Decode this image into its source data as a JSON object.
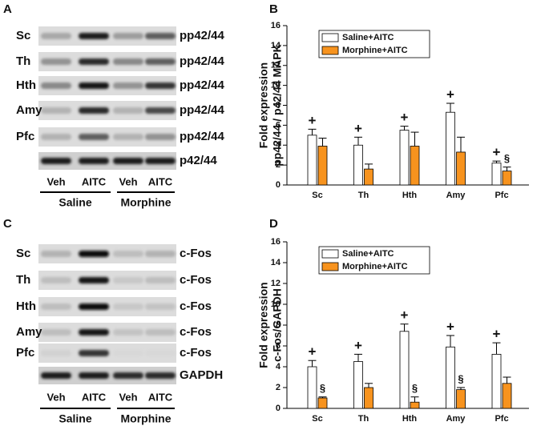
{
  "blots": [
    {
      "panel": "A",
      "rows": [
        "Sc",
        "Th",
        "Hth",
        "Amy",
        "Pfc"
      ],
      "row_target": [
        "pp42/44",
        "pp42/44",
        "pp42/44",
        "pp42/44",
        "pp42/44"
      ],
      "loading_target": "p42/44",
      "lanes": [
        "Veh",
        "AITC",
        "Veh",
        "AITC"
      ],
      "groups": [
        "Saline",
        "Morphine"
      ]
    },
    {
      "panel": "C",
      "rows": [
        "Sc",
        "Th",
        "Hth",
        "Amy",
        "Pfc"
      ],
      "row_target": [
        "c-Fos",
        "c-Fos",
        "c-Fos",
        "c-Fos",
        "c-Fos"
      ],
      "loading_target": "GAPDH",
      "lanes": [
        "Veh",
        "AITC",
        "Veh",
        "AITC"
      ],
      "groups": [
        "Saline",
        "Morphine"
      ]
    }
  ],
  "chart_data": [
    {
      "type": "bar",
      "panel": "B",
      "ylabel": [
        "Fold expression",
        "pp42/44 / p42/44 MAPK"
      ],
      "categories": [
        "Sc",
        "Th",
        "Hth",
        "Amy",
        "Pfc"
      ],
      "series": [
        {
          "name": "Saline+AITC",
          "color": "#ffffff",
          "values": [
            5.0,
            4.0,
            5.5,
            7.3,
            2.2
          ],
          "errors": [
            0.6,
            0.8,
            0.4,
            0.9,
            0.2
          ],
          "annotations": [
            "+",
            "+",
            "+",
            "+",
            "+"
          ]
        },
        {
          "name": "Morphine+AITC",
          "color": "#f7931e",
          "values": [
            3.9,
            1.6,
            3.9,
            3.3,
            1.4
          ],
          "errors": [
            0.8,
            0.5,
            1.4,
            1.5,
            0.4
          ],
          "annotations": [
            null,
            null,
            null,
            null,
            "§"
          ]
        }
      ],
      "ylim": [
        0,
        16
      ],
      "yticks": [
        0,
        2,
        4,
        6,
        8,
        10,
        12,
        14,
        16
      ],
      "legend": "upper-left"
    },
    {
      "type": "bar",
      "panel": "D",
      "ylabel": [
        "Fold expression",
        "c-Fos/GAPDH"
      ],
      "categories": [
        "Sc",
        "Th",
        "Hth",
        "Amy",
        "Pfc"
      ],
      "series": [
        {
          "name": "Saline+AITC",
          "color": "#ffffff",
          "values": [
            4.0,
            4.5,
            7.4,
            5.9,
            5.2
          ],
          "errors": [
            0.6,
            0.7,
            0.7,
            1.1,
            1.1
          ],
          "annotations": [
            "+",
            "+",
            "+",
            "+",
            "+"
          ]
        },
        {
          "name": "Morphine+AITC",
          "color": "#f7931e",
          "values": [
            1.0,
            2.0,
            0.6,
            1.8,
            2.4
          ],
          "errors": [
            0.1,
            0.4,
            0.5,
            0.2,
            0.6
          ],
          "annotations": [
            "§",
            null,
            "§",
            "§",
            null
          ]
        }
      ],
      "ylim": [
        0,
        16
      ],
      "yticks": [
        0,
        2,
        4,
        6,
        8,
        10,
        12,
        14,
        16
      ],
      "legend": "upper-left"
    }
  ]
}
